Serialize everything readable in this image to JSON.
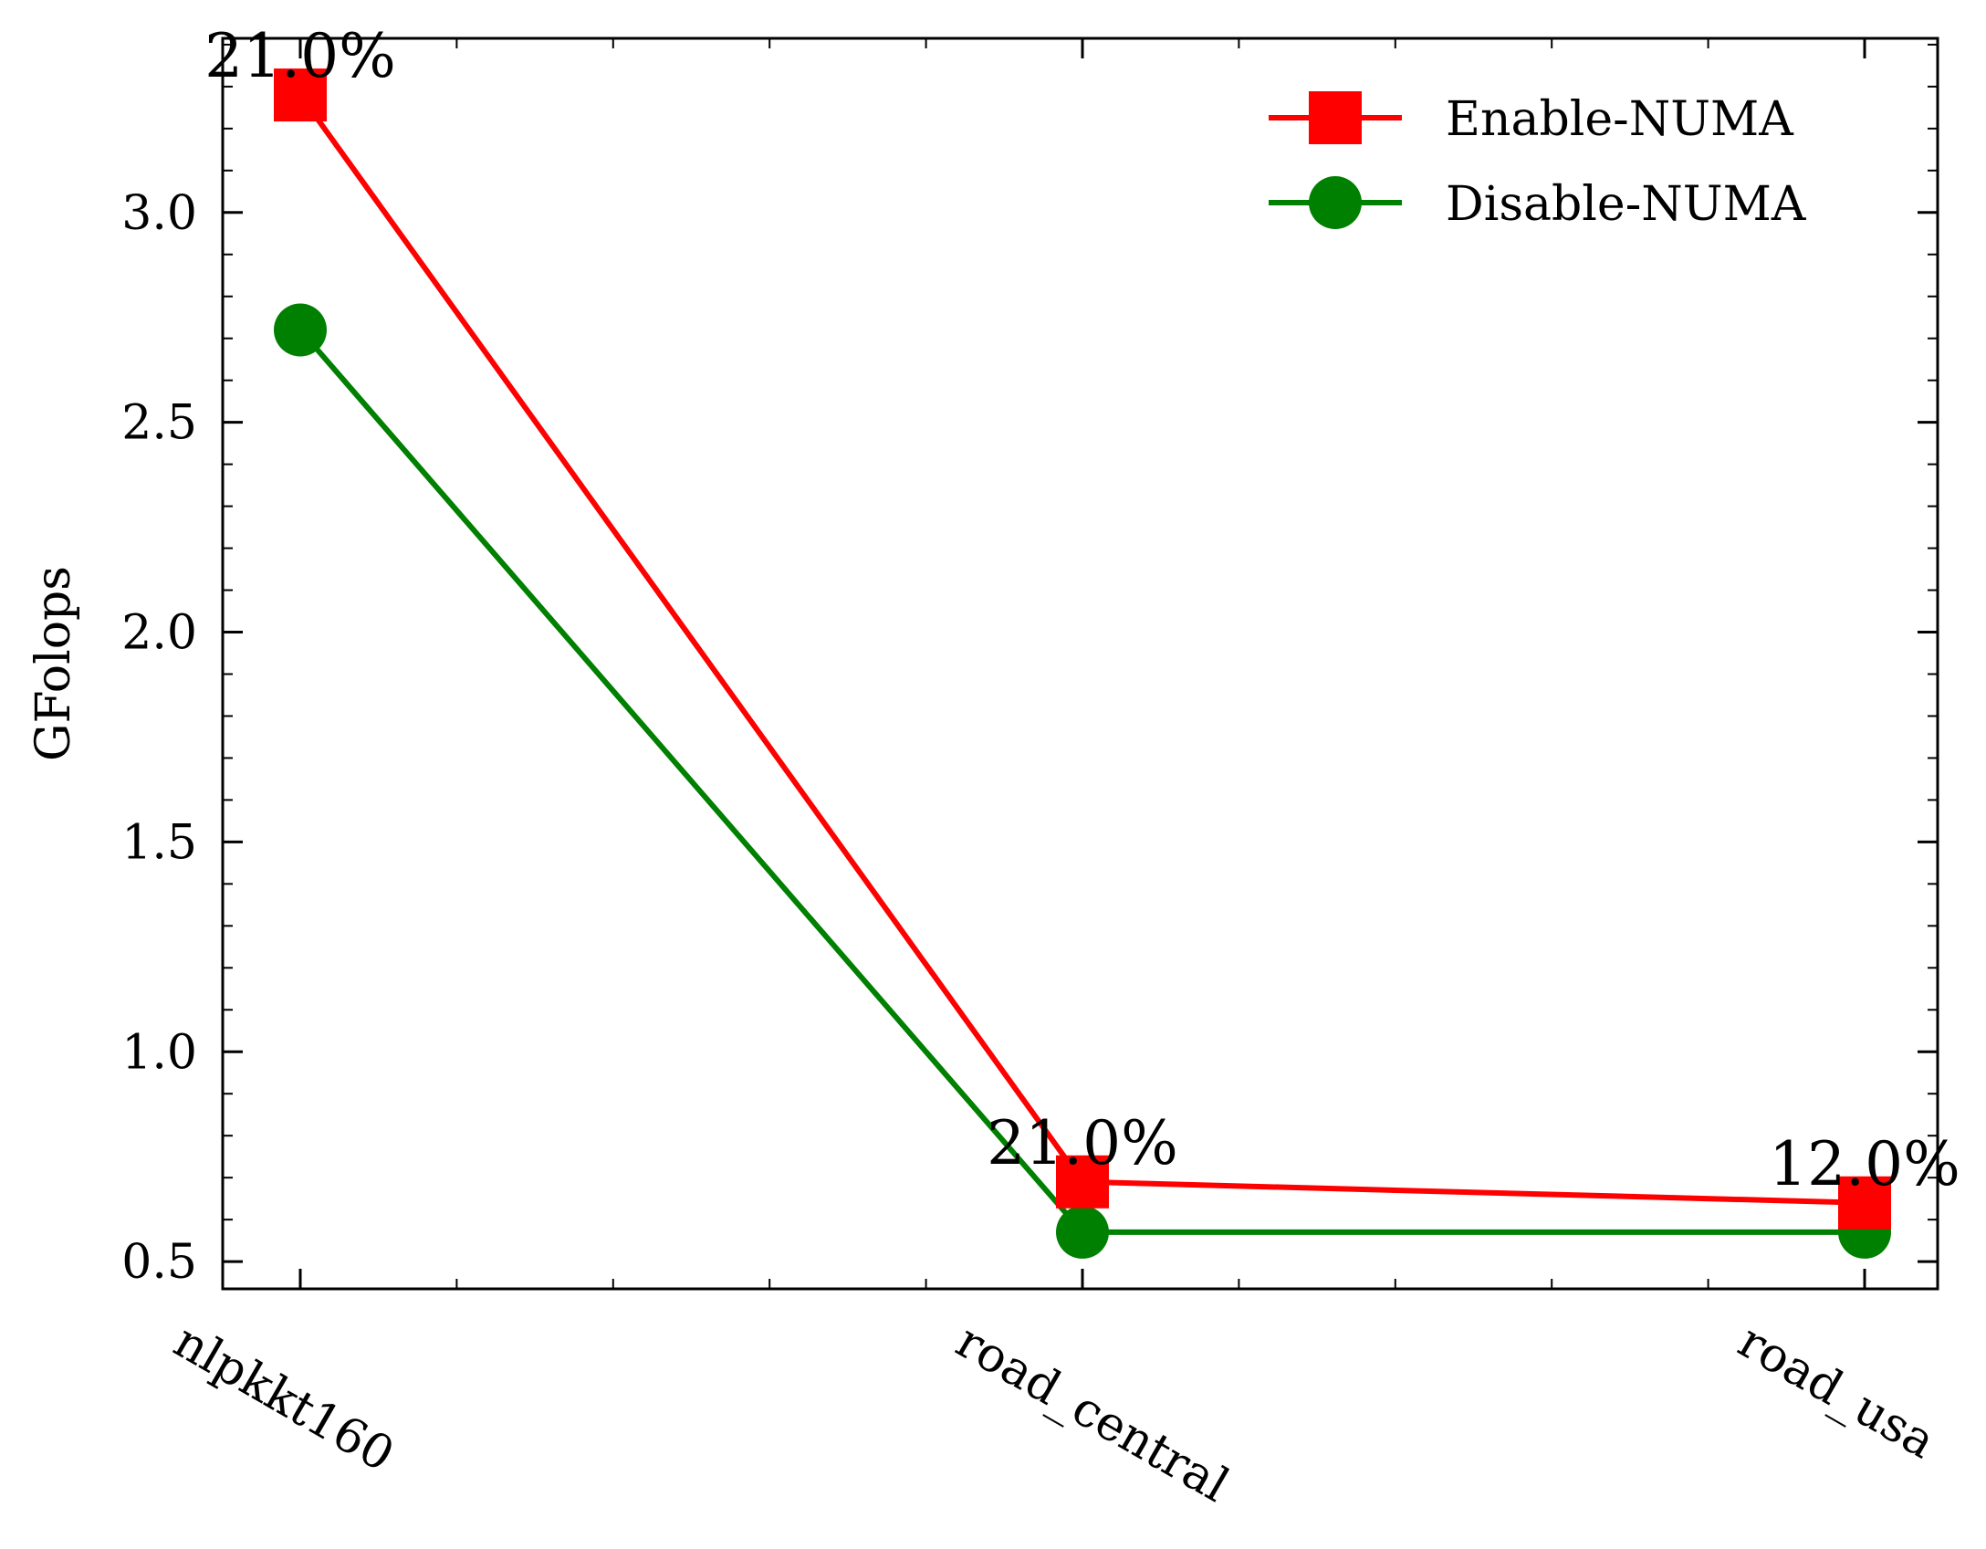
{
  "chart_data": {
    "type": "line",
    "categories": [
      "nlpkkt160",
      "road_central",
      "road_usa"
    ],
    "series": [
      {
        "name": "Enable-NUMA",
        "values": [
          3.28,
          0.69,
          0.64
        ],
        "color": "#ff0000",
        "marker": "square"
      },
      {
        "name": "Disable-NUMA",
        "values": [
          2.72,
          0.57,
          0.57
        ],
        "color": "#008000",
        "marker": "circle"
      }
    ],
    "annotations": [
      "21.0%",
      "21.0%",
      "12.0%"
    ],
    "title": "",
    "xlabel": "",
    "ylabel": "GFolops",
    "ylim": [
      0.435,
      3.415
    ],
    "yticks": [
      0.5,
      1.0,
      1.5,
      2.0,
      2.5,
      3.0
    ],
    "ytick_labels": [
      "0.5",
      "1.0",
      "1.5",
      "2.0",
      "2.5",
      "3.0"
    ],
    "grid": false,
    "legend_position": "top-right"
  }
}
